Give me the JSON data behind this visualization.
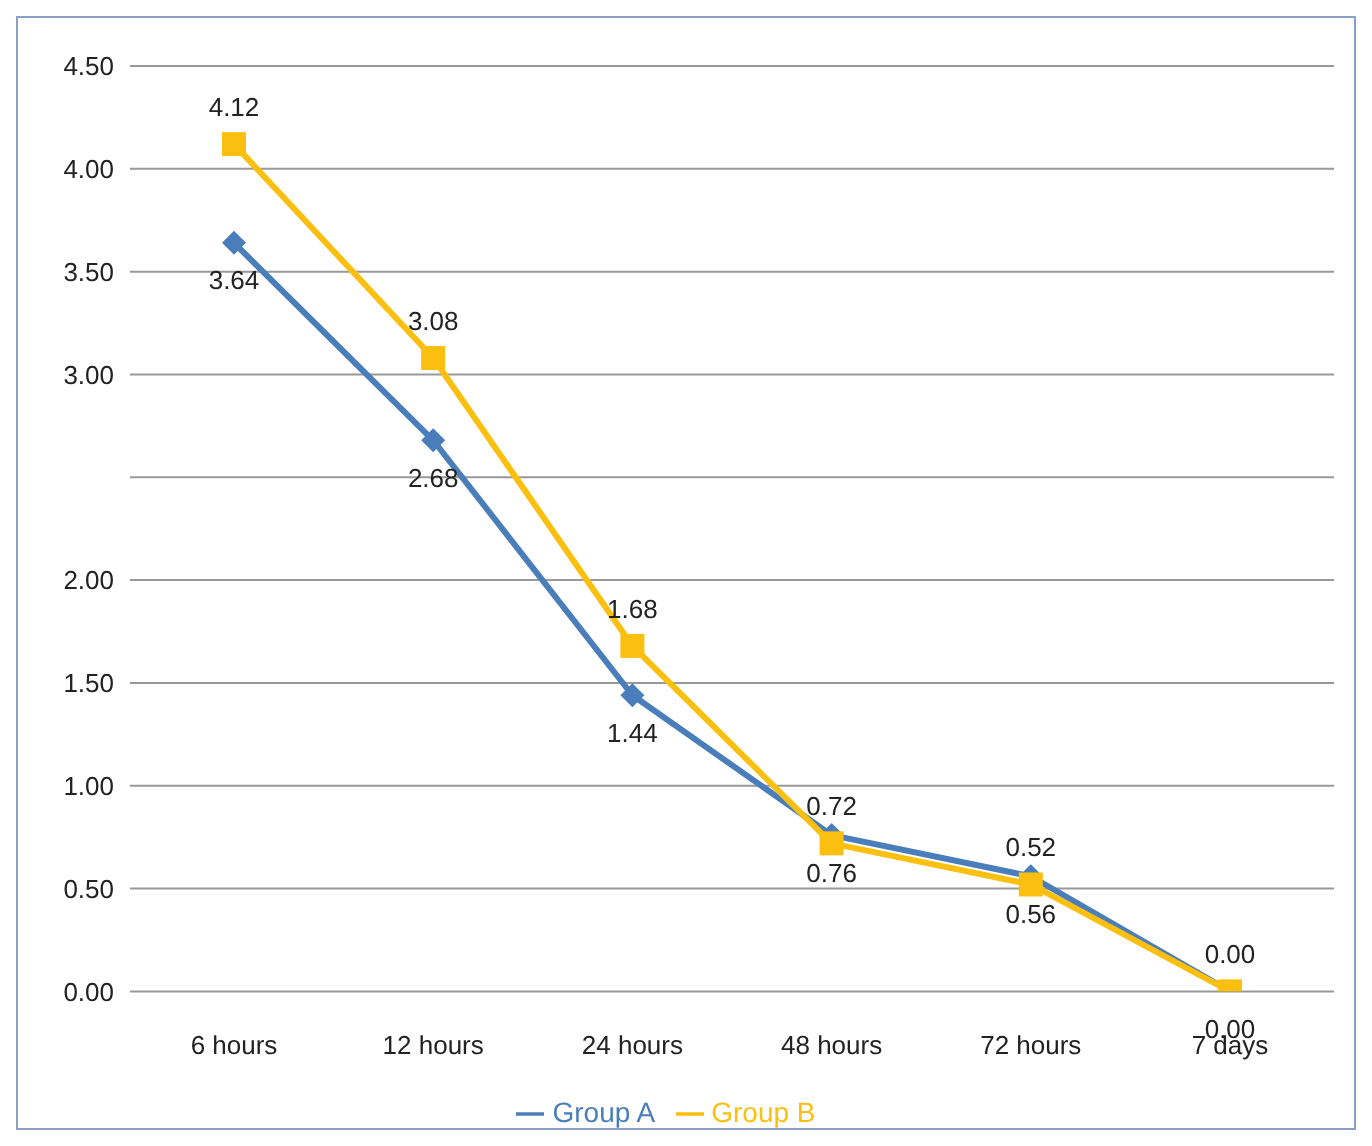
{
  "chart_data": {
    "type": "line",
    "categories": [
      "6 hours",
      "12 hours",
      "24 hours",
      "48 hours",
      "72 hours",
      "7 days"
    ],
    "series": [
      {
        "name": "Group A",
        "color": "#4a7ebb",
        "marker": "diamond",
        "values": [
          3.64,
          2.68,
          1.44,
          0.76,
          0.56,
          0.0
        ],
        "value_labels": [
          "3.64",
          "2.68",
          "1.44",
          "0.76",
          "0.56",
          "0.00"
        ]
      },
      {
        "name": "Group B",
        "color": "#fbbf0f",
        "marker": "square",
        "values": [
          4.12,
          3.08,
          1.68,
          0.72,
          0.52,
          0.0
        ],
        "value_labels": [
          "4.12",
          "3.08",
          "1.68",
          "0.72",
          "0.52",
          "0.00"
        ]
      }
    ],
    "ylim": [
      0,
      4.5
    ],
    "yticks": [
      {
        "value": 0,
        "label": "0.00"
      },
      {
        "value": 0.5,
        "label": "0.50"
      },
      {
        "value": 1,
        "label": "1.00"
      },
      {
        "value": 1.5,
        "label": "1.50"
      },
      {
        "value": 2,
        "label": "2.00"
      },
      {
        "value": 2.5,
        "label": null
      },
      {
        "value": 3,
        "label": "3.00"
      },
      {
        "value": 3.5,
        "label": "3.50"
      },
      {
        "value": 4,
        "label": "4.00"
      },
      {
        "value": 4.5,
        "label": "4.50"
      }
    ],
    "grid": "y",
    "legend": "bottom"
  }
}
